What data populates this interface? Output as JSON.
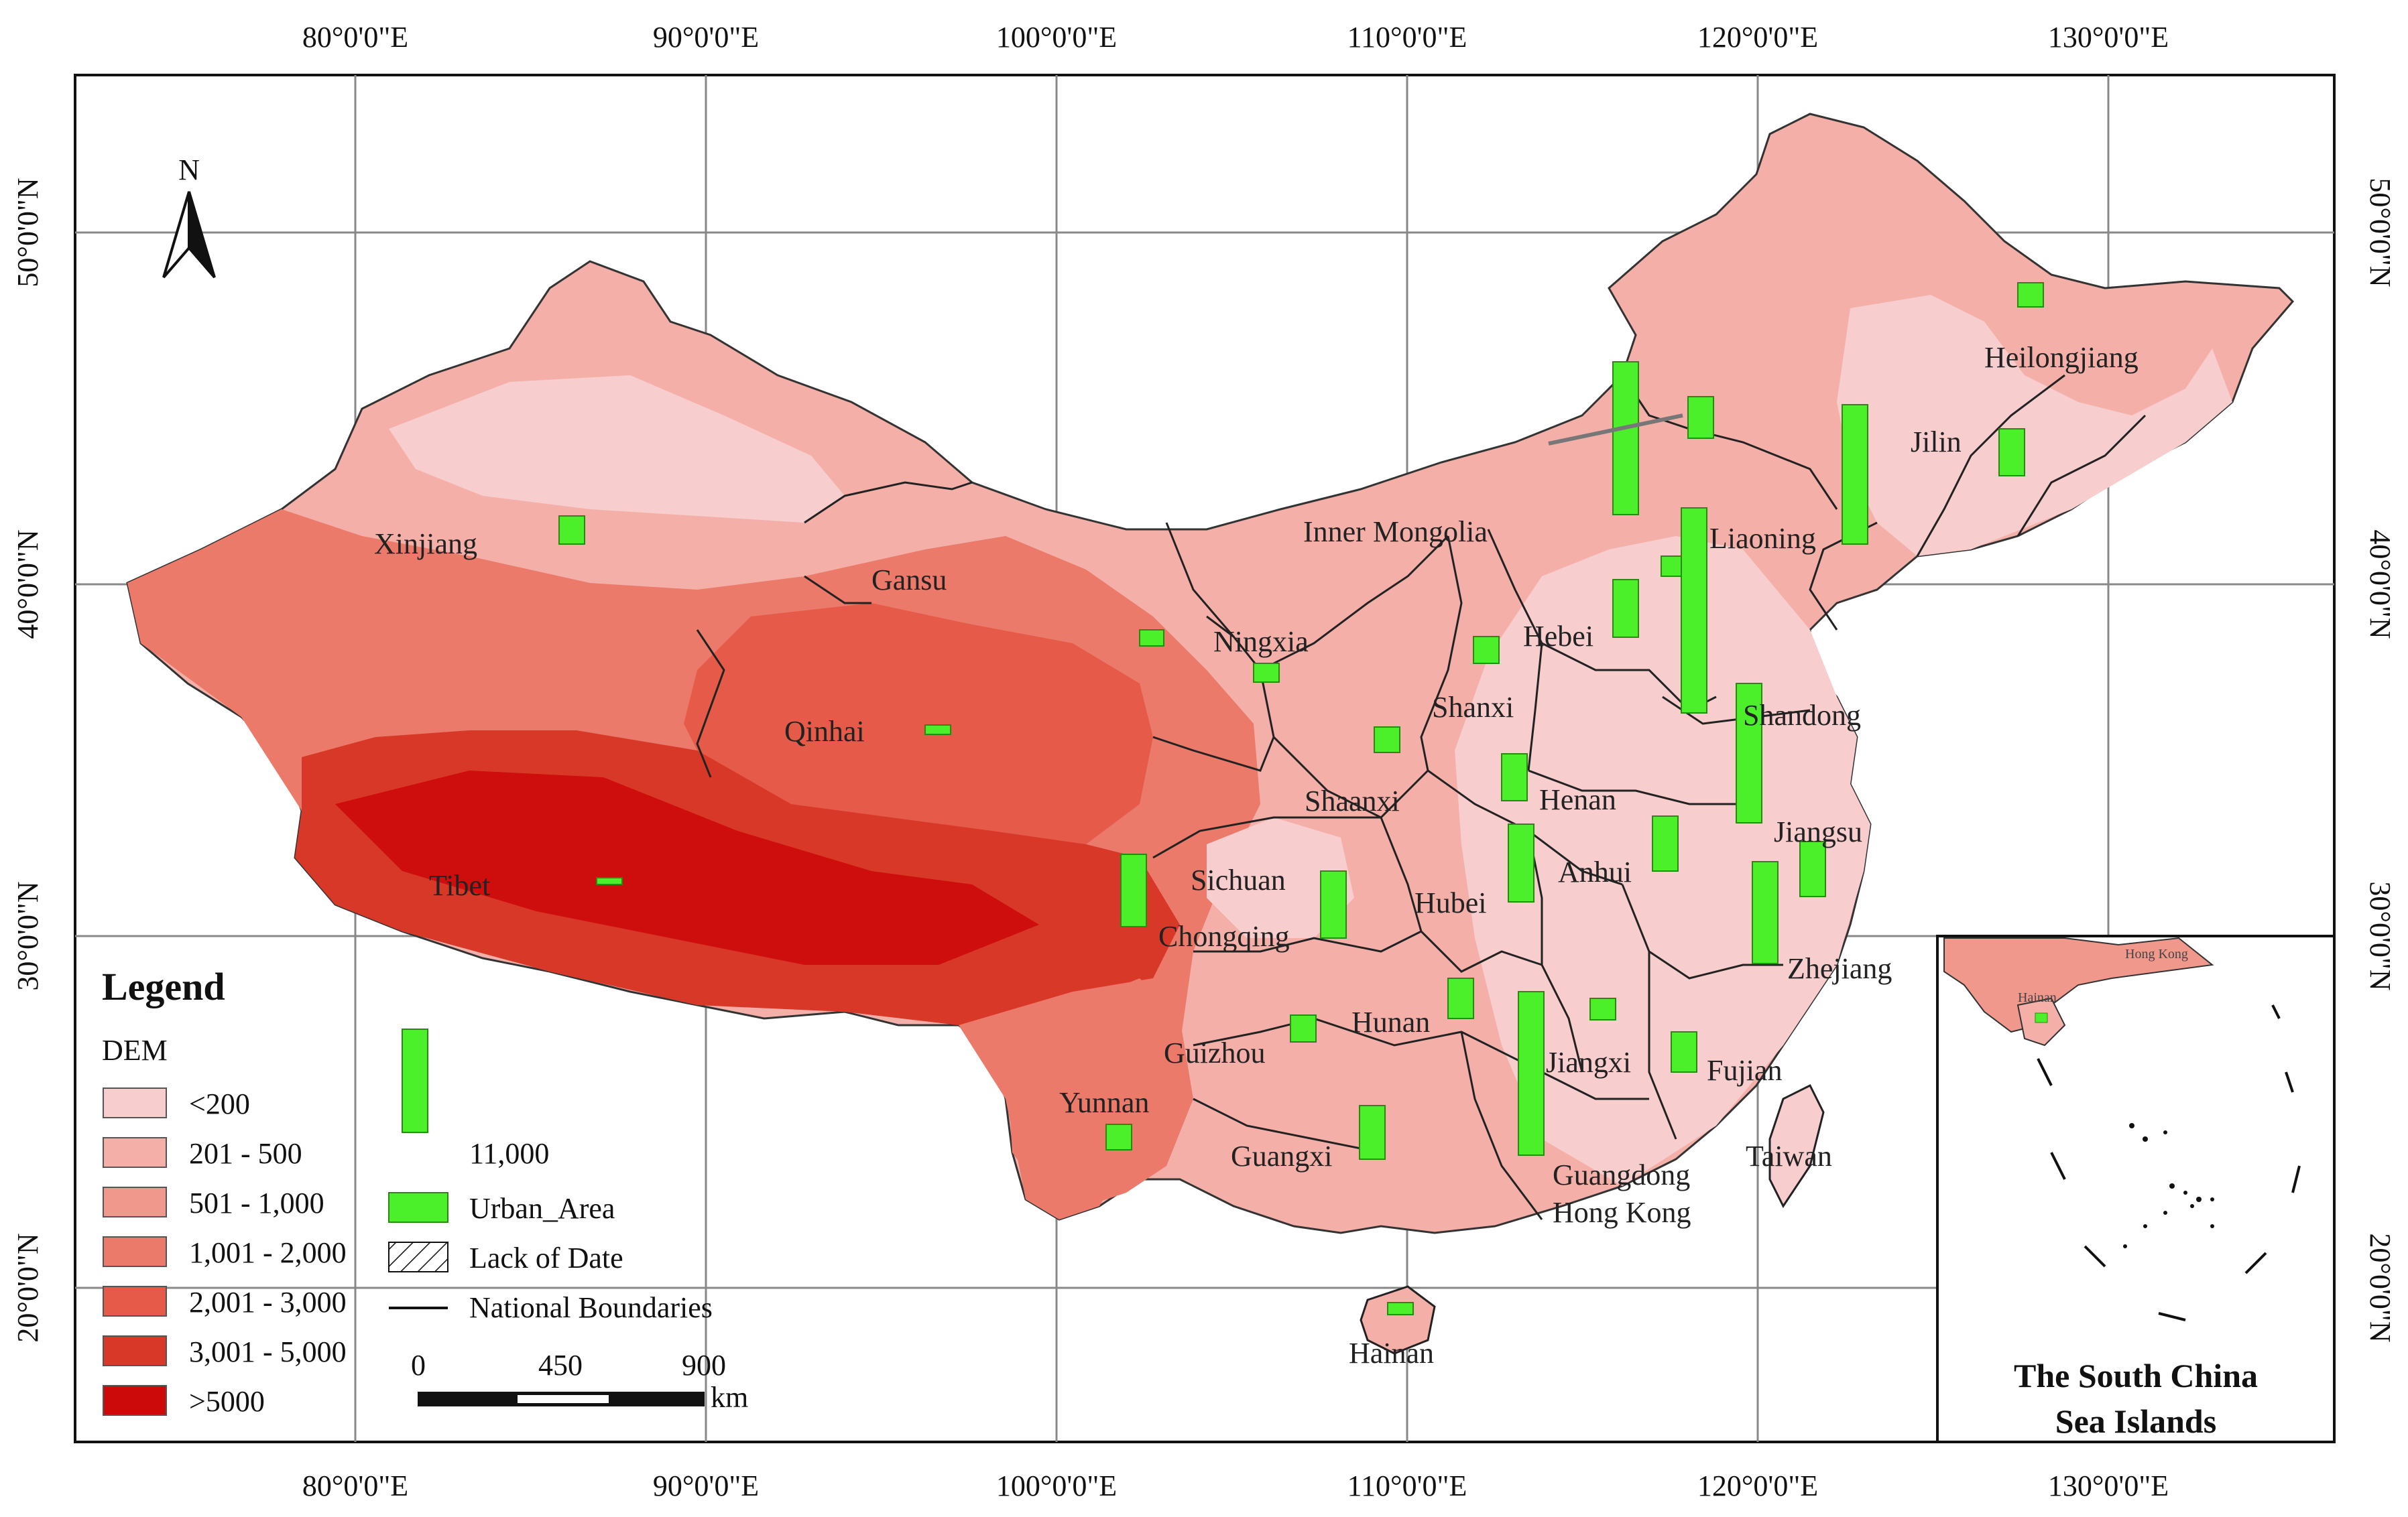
{
  "map": {
    "lon_ticks": [
      "80°0'0\"E",
      "90°0'0\"E",
      "100°0'0\"E",
      "110°0'0\"E",
      "120°0'0\"E",
      "130°0'0\"E"
    ],
    "lat_ticks": [
      "50°0'0\"N",
      "40°0'0\"N",
      "30°0'0\"N",
      "20°0'0\"N"
    ],
    "north_label": "N",
    "provinces": {
      "xinjiang": "Xinjiang",
      "gansu": "Gansu",
      "qinhai": "Qinhai",
      "tibet": "Tibet",
      "inner_mongolia": "Inner Mongolia",
      "ningxia": "Ningxia",
      "shanxi": "Shanxi",
      "hebei": "Hebei",
      "liaoning": "Liaoning",
      "jilin": "Jilin",
      "heilongjiang": "Heilongjiang",
      "shandong": "Shandong",
      "henan": "Henan",
      "shaanxi": "Shaanxi",
      "jiangsu": "Jiangsu",
      "anhui": "Anhui",
      "sichuan": "Sichuan",
      "chongqing": "Chongqing",
      "hubei": "Hubei",
      "zhejiang": "Zhejiang",
      "hunan": "Hunan",
      "guizhou": "Guizhou",
      "jiangxi": "Jiangxi",
      "fujian": "Fujian",
      "yunnan": "Yunnan",
      "guangxi": "Guangxi",
      "guangdong": "Guangdong",
      "taiwan": "Taiwan",
      "hong_kong": "Hong Kong",
      "hainan": "Hainan"
    }
  },
  "legend": {
    "title": "Legend",
    "dem_title": "DEM",
    "dem_classes": [
      {
        "label": "<200",
        "color": "#f7cdcd"
      },
      {
        "label": "201 - 500",
        "color": "#f4b0a8"
      },
      {
        "label": "501 - 1,000",
        "color": "#f0988c"
      },
      {
        "label": "1,001 - 2,000",
        "color": "#ec7a6a"
      },
      {
        "label": "2,001 - 3,000",
        "color": "#e55a48"
      },
      {
        "label": "3,001 - 5,000",
        "color": "#d83828"
      },
      {
        "label": ">5000",
        "color": "#cc0a0a"
      }
    ],
    "bar_value": "11,000",
    "urban_label": "Urban_Area",
    "lack_label": "Lack of Date",
    "boundary_label": "National Boundaries",
    "urban_color": "#4cf02a",
    "scale": {
      "ticks": [
        "0",
        "450",
        "900"
      ],
      "unit": "km"
    }
  },
  "inset": {
    "title_line1": "The South China",
    "title_line2": "Sea Islands",
    "tiny_label1": "Hong Kong",
    "tiny_label2": "Hainan"
  }
}
